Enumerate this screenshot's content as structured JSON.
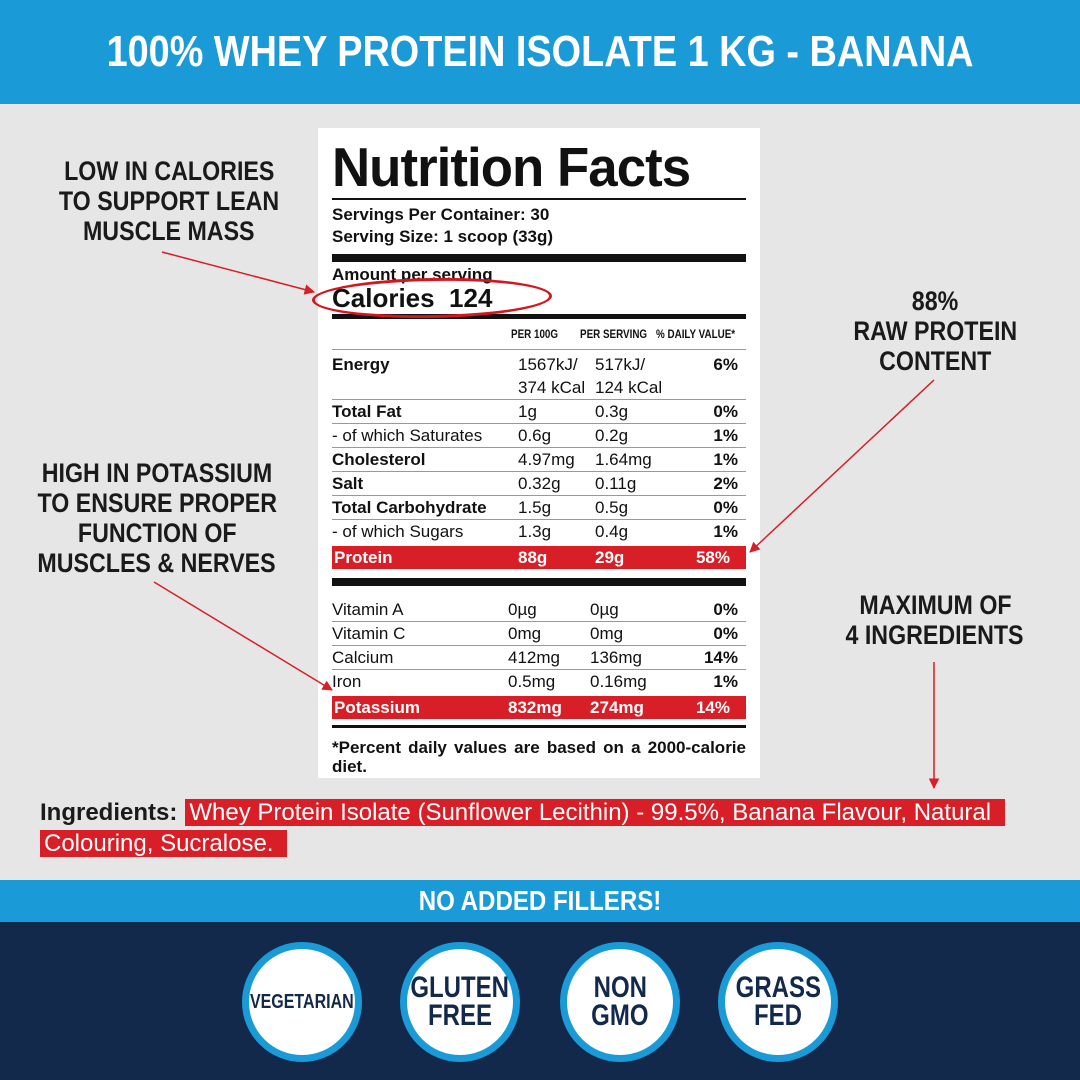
{
  "header": {
    "title": "100% WHEY PROTEIN ISOLATE 1 KG - BANANA"
  },
  "callouts": {
    "calories": [
      "LOW IN CALORIES",
      "TO SUPPORT LEAN",
      "MUSCLE MASS"
    ],
    "potassium": [
      "HIGH IN POTASSIUM",
      "TO ENSURE PROPER",
      "FUNCTION OF",
      "MUSCLES & NERVES"
    ],
    "protein": [
      "88%",
      "RAW PROTEIN",
      "CONTENT"
    ],
    "ingredients_max": [
      "MAXIMUM OF",
      "4 INGREDIENTS"
    ]
  },
  "nutrition": {
    "title": "Nutrition Facts",
    "servings_per_container": "Servings Per Container: 30",
    "serving_size": "Serving Size: 1 scoop (33g)",
    "amount_per_serving": "Amount per serving",
    "calories": "Calories  124",
    "columns": [
      "PER 100G",
      "PER SERVING",
      "% DAILY VALUE*"
    ],
    "energy": {
      "name": "Energy",
      "per100_a": "1567kJ/",
      "per100_b": "374 kCal",
      "serv_a": "517kJ/",
      "serv_b": "124 kCal",
      "dv": "6%"
    },
    "rows": [
      {
        "name": "Total Fat",
        "per100": "1g",
        "serving": "0.3g",
        "dv": "0%",
        "bold": true
      },
      {
        "name": "- of which Saturates",
        "per100": "0.6g",
        "serving": "0.2g",
        "dv": "1%",
        "bold": false
      },
      {
        "name": "Cholesterol",
        "per100": "4.97mg",
        "serving": "1.64mg",
        "dv": "1%",
        "bold": true
      },
      {
        "name": "Salt",
        "per100": "0.32g",
        "serving": "0.11g",
        "dv": "2%",
        "bold": true
      },
      {
        "name": "Total Carbohydrate",
        "per100": "1.5g",
        "serving": "0.5g",
        "dv": "0%",
        "bold": true
      },
      {
        "name": "- of which Sugars",
        "per100": "1.3g",
        "serving": "0.4g",
        "dv": "1%",
        "bold": false
      }
    ],
    "protein": {
      "name": "Protein",
      "per100": "88g",
      "serving": "29g",
      "dv": "58%"
    },
    "vitamins": [
      {
        "name": "Vitamin A",
        "per100": "0µg",
        "serving": "0µg",
        "dv": "0%"
      },
      {
        "name": "Vitamin C",
        "per100": "0mg",
        "serving": "0mg",
        "dv": "0%"
      },
      {
        "name": "Calcium",
        "per100": "412mg",
        "serving": "136mg",
        "dv": "14%"
      },
      {
        "name": "Iron",
        "per100": "0.5mg",
        "serving": "0.16mg",
        "dv": "1%"
      }
    ],
    "potassium": {
      "name": "Potassium",
      "per100": "832mg",
      "serving": "274mg",
      "dv": "14%"
    },
    "footnote": "*Percent daily values are based on a 2000-calorie diet."
  },
  "ingredients": {
    "label": "Ingredients:",
    "text": "Whey Protein Isolate (Sunflower Lecithin) - 99.5%, Banana Flavour, Natural Colouring, Sucralose."
  },
  "band": {
    "text": "NO ADDED FILLERS!"
  },
  "badges": [
    {
      "lines": [
        "VEGETARIAN"
      ],
      "icon": "vegetarian-badge-icon"
    },
    {
      "lines": [
        "GLUTEN",
        "FREE"
      ],
      "icon": "gluten-free-badge-icon"
    },
    {
      "lines": [
        "NON",
        "GMO"
      ],
      "icon": "non-gmo-badge-icon"
    },
    {
      "lines": [
        "GRASS",
        "FED"
      ],
      "icon": "grass-fed-badge-icon"
    }
  ],
  "colors": {
    "header_blue": "#1a9bd7",
    "navy": "#13294b",
    "highlight_red": "#d81e26",
    "background": "#e6e6e6"
  }
}
